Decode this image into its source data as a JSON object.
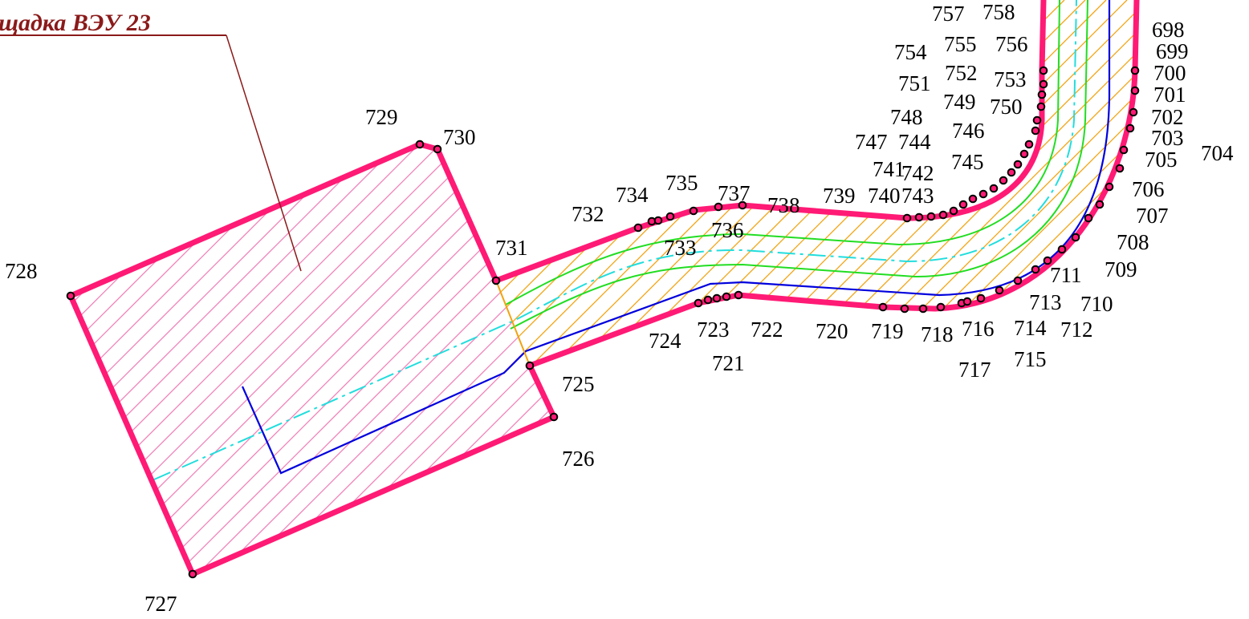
{
  "title": "щадка ВЭУ 23",
  "colors": {
    "boundary": "#ff1a75",
    "hatch_area": "#f080b8",
    "hatch_road": "#f2a310",
    "axis": "#22dddd",
    "edge_green": "#22dd22",
    "edge_blue": "#0000dd",
    "leader": "#8b1a1a",
    "vertex_fill": "#ff1a75",
    "vertex_stroke": "#000000"
  },
  "point_labels": [
    "698",
    "699",
    "700",
    "701",
    "702",
    "703",
    "704",
    "705",
    "706",
    "707",
    "708",
    "709",
    "710",
    "711",
    "712",
    "713",
    "714",
    "715",
    "716",
    "717",
    "718",
    "719",
    "720",
    "721",
    "722",
    "723",
    "724",
    "725",
    "726",
    "727",
    "728",
    "729",
    "730",
    "731",
    "732",
    "733",
    "734",
    "735",
    "736",
    "737",
    "738",
    "739",
    "740",
    "741",
    "742",
    "743",
    "744",
    "745",
    "746",
    "747",
    "748",
    "749",
    "750",
    "751",
    "752",
    "753",
    "754",
    "755",
    "756",
    "757",
    "758"
  ]
}
